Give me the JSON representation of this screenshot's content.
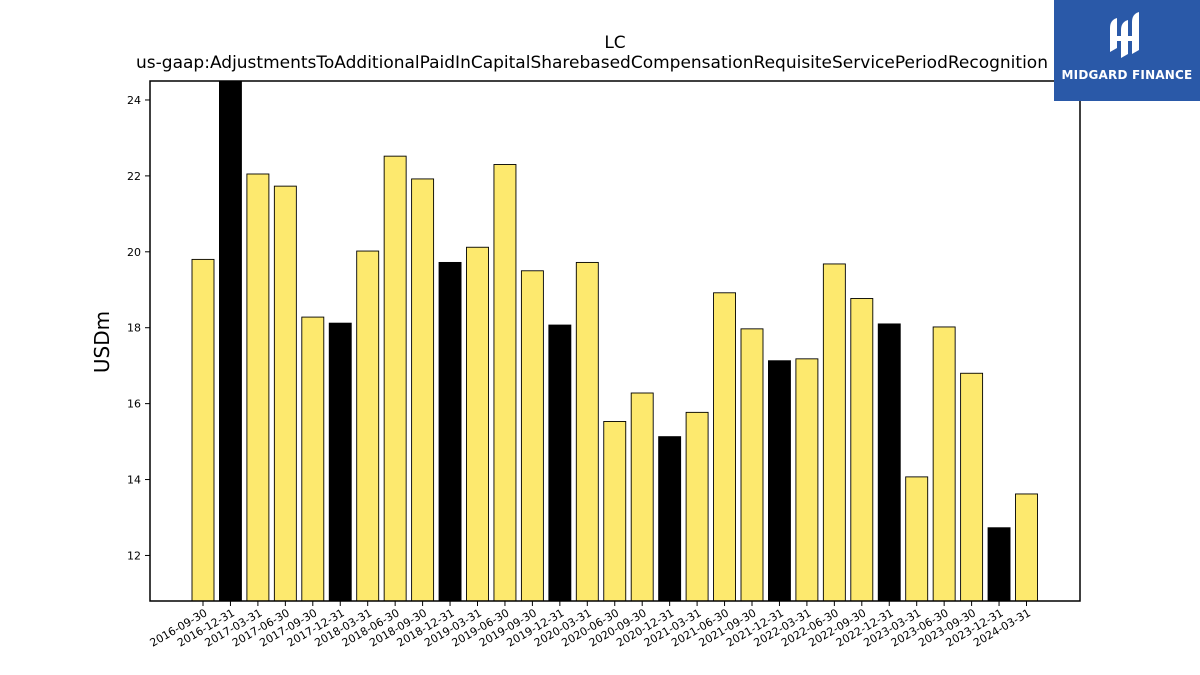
{
  "chart_data": {
    "type": "bar",
    "title": "LC",
    "subtitle": "us-gaap:AdjustmentsToAdditionalPaidInCapitalSharebasedCompensationRequisiteServicePeriodRecognition",
    "xlabel": "",
    "ylabel": "USDm",
    "ylim": [
      10.8,
      24.5
    ],
    "yticks": [
      12,
      14,
      16,
      18,
      20,
      22,
      24
    ],
    "grid": false,
    "categories": [
      "2016-09-30",
      "2016-12-31",
      "2017-03-31",
      "2017-06-30",
      "2017-09-30",
      "2017-12-31",
      "2018-03-31",
      "2018-06-30",
      "2018-09-30",
      "2018-12-31",
      "2019-03-31",
      "2019-06-30",
      "2019-09-30",
      "2019-12-31",
      "2020-03-31",
      "2020-06-30",
      "2020-09-30",
      "2020-12-31",
      "2021-03-31",
      "2021-06-30",
      "2021-09-30",
      "2021-12-31",
      "2022-03-31",
      "2022-06-30",
      "2022-09-30",
      "2022-12-31",
      "2023-03-31",
      "2023-06-30",
      "2023-09-30",
      "2023-12-31",
      "2024-03-31"
    ],
    "values": [
      19.8,
      24.5,
      22.05,
      21.73,
      18.28,
      18.12,
      20.02,
      22.52,
      21.92,
      19.72,
      20.12,
      22.3,
      19.5,
      18.07,
      19.72,
      15.53,
      16.28,
      15.13,
      15.77,
      18.92,
      17.97,
      17.13,
      17.18,
      19.68,
      18.77,
      18.1,
      14.07,
      18.02,
      16.8,
      12.73,
      13.62
    ],
    "colors": {
      "quarter": "#fde96e",
      "year_end": "#000000",
      "edge": "#000000"
    },
    "bar_colors": [
      "quarter",
      "year_end",
      "quarter",
      "quarter",
      "quarter",
      "year_end",
      "quarter",
      "quarter",
      "quarter",
      "year_end",
      "quarter",
      "quarter",
      "quarter",
      "year_end",
      "quarter",
      "quarter",
      "quarter",
      "year_end",
      "quarter",
      "quarter",
      "quarter",
      "year_end",
      "quarter",
      "quarter",
      "quarter",
      "year_end",
      "quarter",
      "quarter",
      "quarter",
      "year_end",
      "quarter"
    ]
  },
  "logo": {
    "text": "MIDGARD FINANCE",
    "background": "#2a59a8",
    "icon": "midgard-logo-icon"
  }
}
